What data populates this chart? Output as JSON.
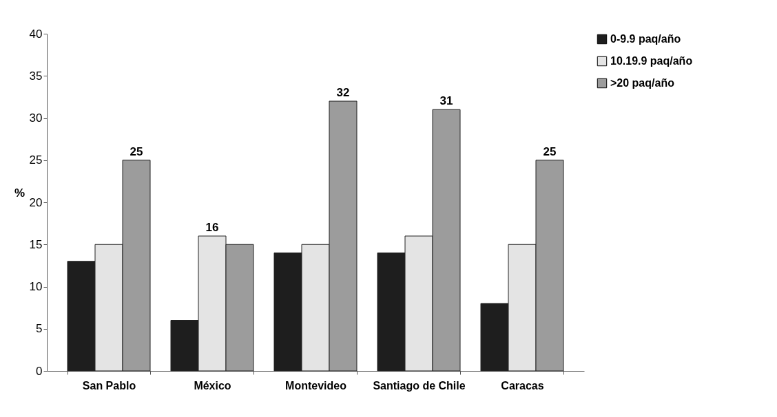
{
  "chart_data": {
    "type": "bar",
    "ylabel": "%",
    "categories": [
      "San Pablo",
      "México",
      "Montevideo",
      "Santiago de Chile",
      "Caracas"
    ],
    "series": [
      {
        "name": "0-9.9 paq/año",
        "color": "#1e1e1e",
        "values": [
          13,
          6,
          14,
          14,
          8
        ]
      },
      {
        "name": "10.19.9 paq/año",
        "color": "#e4e4e4",
        "values": [
          15,
          16,
          15,
          16,
          15
        ],
        "value_labels": [
          null,
          "16",
          null,
          null,
          null
        ]
      },
      {
        "name": ">20 paq/año",
        "color": "#9c9c9c",
        "values": [
          25,
          15,
          32,
          31,
          25
        ],
        "value_labels": [
          "25",
          null,
          "32",
          "31",
          "25"
        ]
      }
    ],
    "ylim": [
      0,
      40
    ],
    "yticks": [
      0,
      5,
      10,
      15,
      20,
      25,
      30,
      35,
      40
    ],
    "grid": false,
    "legend": "right"
  }
}
